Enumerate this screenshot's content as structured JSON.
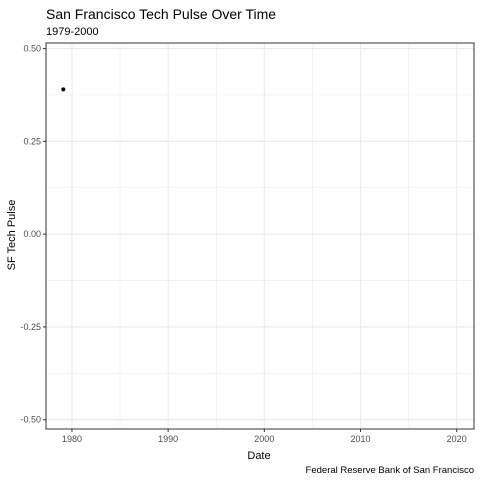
{
  "chart_data": {
    "type": "scatter",
    "title": "San Francisco Tech Pulse Over Time",
    "subtitle": "1979-2000",
    "xlabel": "Date",
    "ylabel": "SF Tech Pulse",
    "caption": "Federal Reserve Bank of San Francisco",
    "x_ticks": [
      "1980",
      "1990",
      "2000",
      "2010",
      "2020"
    ],
    "y_ticks": [
      "-0.50",
      "-0.25",
      "0.00",
      "0.25",
      "0.50"
    ],
    "xlim": [
      1977.3,
      2021.8
    ],
    "ylim": [
      -0.525,
      0.515
    ],
    "grid": true,
    "x": [
      1979.1
    ],
    "values": [
      0.39
    ],
    "colors": {
      "point": "#000000",
      "grid": "#ebebeb",
      "border": "#333333",
      "text": "#000000",
      "tick_text": "#4d4d4d"
    }
  }
}
